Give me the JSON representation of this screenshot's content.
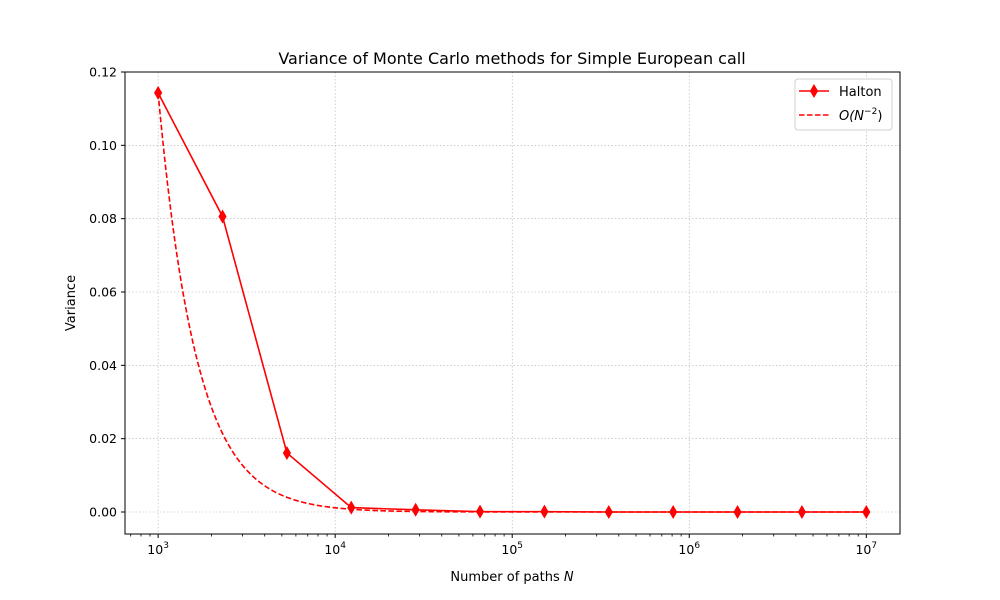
{
  "chart_data": {
    "type": "line",
    "title": "Variance of Monte Carlo methods for Simple European call",
    "xlabel": "Number of paths N",
    "ylabel": "Variance",
    "xscale": "log",
    "xlim": [
      650,
      15500000
    ],
    "ylim": [
      -0.006,
      0.12
    ],
    "grid": true,
    "legend_position": "top-right",
    "x_ticks": [
      {
        "value": 1000,
        "base": "10",
        "exp": "3"
      },
      {
        "value": 10000,
        "base": "10",
        "exp": "4"
      },
      {
        "value": 100000,
        "base": "10",
        "exp": "5"
      },
      {
        "value": 1000000,
        "base": "10",
        "exp": "6"
      },
      {
        "value": 10000000,
        "base": "10",
        "exp": "7"
      }
    ],
    "y_ticks": [
      {
        "value": 0.0,
        "label": "0.00"
      },
      {
        "value": 0.02,
        "label": "0.02"
      },
      {
        "value": 0.04,
        "label": "0.04"
      },
      {
        "value": 0.06,
        "label": "0.06"
      },
      {
        "value": 0.08,
        "label": "0.08"
      },
      {
        "value": 0.1,
        "label": "0.10"
      },
      {
        "value": 0.12,
        "label": "0.12"
      }
    ],
    "series": [
      {
        "name": "Halton",
        "style": "solid-diamond",
        "color": "#ff0000",
        "x": [
          1000,
          2310,
          5340,
          12330,
          28480,
          65790,
          151990,
          351120,
          811130,
          1873820,
          4328760,
          10000000
        ],
        "y": [
          0.1143,
          0.0806,
          0.0161,
          0.0012,
          0.0006,
          0.0001,
          0.0001,
          0.0,
          0.0,
          0.0,
          0.0,
          0.0
        ]
      },
      {
        "name": "O(N^-2)",
        "legend_main": "O(N",
        "legend_sup": "−2",
        "legend_end": ")",
        "style": "dashed",
        "color": "#ff0000",
        "formula": "0.1143 * (1000 / N)^2",
        "coefficient": 0.1143,
        "reference_n": 1000,
        "x_range": [
          1000,
          10000000
        ]
      }
    ]
  }
}
